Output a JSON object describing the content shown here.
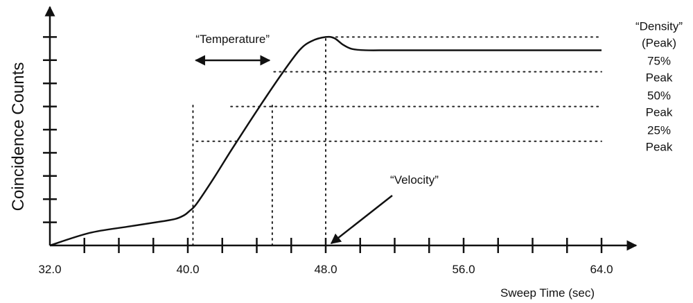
{
  "chart_data": {
    "type": "line",
    "title": "",
    "xlabel": "Sweep Time (sec)",
    "ylabel": "Coincidence Counts",
    "xlim": [
      32.0,
      64.0
    ],
    "ylim": [
      0,
      100
    ],
    "grid": false,
    "x_ticks": [
      "32.0",
      "40.0",
      "48.0",
      "56.0",
      "64.0"
    ],
    "x_minor_step": 2,
    "y_tick_step": 10,
    "series": [
      {
        "name": "",
        "x": [
          32.0,
          34.3,
          36.5,
          38.5,
          39.3,
          39.8,
          40.1,
          40.5,
          41.5,
          42.5,
          43.5,
          44.5,
          45.5,
          46.5,
          47.2,
          48.0,
          48.5,
          49.0,
          49.5,
          50.3,
          52.0,
          56.0,
          60.0,
          64.0
        ],
        "y": [
          0,
          5.4,
          8.1,
          10.4,
          11.5,
          13.1,
          14.9,
          17.9,
          29.0,
          40.9,
          52.4,
          63.7,
          74.6,
          84.5,
          88.3,
          90.0,
          89.5,
          86.7,
          84.9,
          84.3,
          84.3,
          84.3,
          84.3,
          84.3
        ]
      }
    ],
    "reference_lines": {
      "horizontal": [
        {
          "y": 90.0,
          "x_from": 48.6,
          "x_to": 64.0
        },
        {
          "y": 75.0,
          "x_from": 45.0,
          "x_to": 64.0
        },
        {
          "y": 60.0,
          "x_from": 42.5,
          "x_to": 64.0
        },
        {
          "y": 45.0,
          "x_from": 40.5,
          "x_to": 64.0
        }
      ],
      "vertical": [
        {
          "x": 40.3,
          "y_from": 0,
          "y_to": 61.0
        },
        {
          "x": 44.9,
          "y_from": 0,
          "y_to": 61.0
        },
        {
          "x": 48.0,
          "y_from": 0,
          "y_to": 90.0
        }
      ]
    },
    "right_labels": [
      {
        "y": 90.0,
        "lines": [
          "“Density”",
          "(Peak)"
        ]
      },
      {
        "y": 75.0,
        "lines": [
          "75%",
          "Peak"
        ]
      },
      {
        "y": 60.0,
        "lines": [
          "50%",
          "Peak"
        ]
      },
      {
        "y": 45.0,
        "lines": [
          "25%",
          "Peak"
        ]
      }
    ],
    "annotations": [
      {
        "text": "“Temperature”",
        "span_x": [
          40.3,
          44.9
        ],
        "arrow_y": 61.0
      },
      {
        "text": "“Velocity”",
        "points_to_x": 48.0
      }
    ]
  }
}
